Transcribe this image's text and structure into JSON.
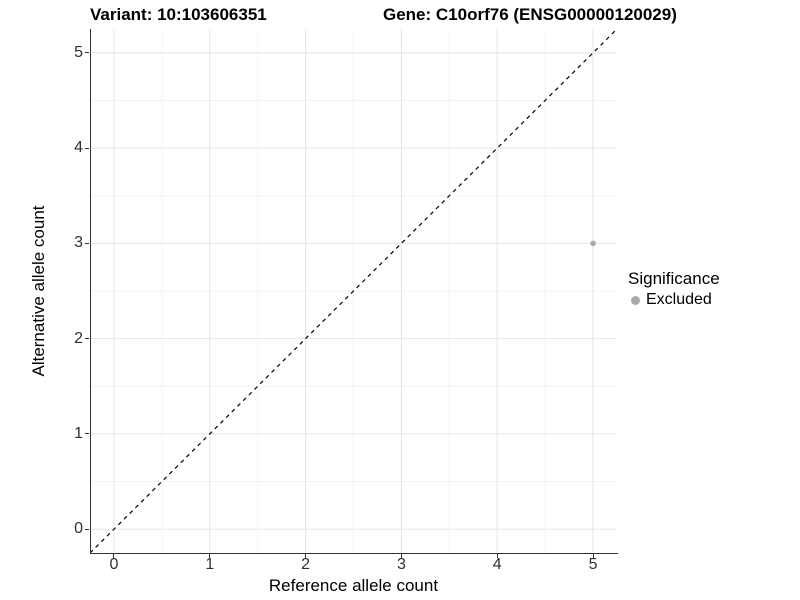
{
  "titles": {
    "variant": "Variant: 10:103606351",
    "gene": "Gene: C10orf76 (ENSG00000120029)"
  },
  "legend": {
    "title": "Significance"
  },
  "colors": {
    "background": "#ffffff",
    "axis_line": "#333333",
    "tick_text": "#303030",
    "title_text": "#000000",
    "grid_major": "#e4e4e4",
    "grid_minor": "#f3f3f3",
    "reference_line": "#000000",
    "excluded_point": "#a9a9a9"
  },
  "chart_data": {
    "type": "scatter",
    "title_left": "Variant: 10:103606351",
    "title_right": "Gene: C10orf76 (ENSG00000120029)",
    "xlabel": "Reference allele count",
    "ylabel": "Alternative allele count",
    "xlim": [
      -0.25,
      5.25
    ],
    "ylim": [
      -0.25,
      5.25
    ],
    "x_ticks": [
      0,
      1,
      2,
      3,
      4,
      5
    ],
    "y_ticks": [
      0,
      1,
      2,
      3,
      4,
      5
    ],
    "x_minor_ticks": [
      0.5,
      1.5,
      2.5,
      3.5,
      4.5
    ],
    "y_minor_ticks": [
      0.5,
      1.5,
      2.5,
      3.5,
      4.5
    ],
    "grid": true,
    "legend_position": "right",
    "legend_title": "Significance",
    "reference_line": {
      "kind": "identity",
      "from": [
        -0.25,
        -0.25
      ],
      "to": [
        5.25,
        5.25
      ],
      "style": "dashed",
      "color": "#000000"
    },
    "series": [
      {
        "name": "Excluded",
        "color": "#a9a9a9",
        "points": [
          {
            "x": 5,
            "y": 3
          }
        ]
      }
    ]
  }
}
